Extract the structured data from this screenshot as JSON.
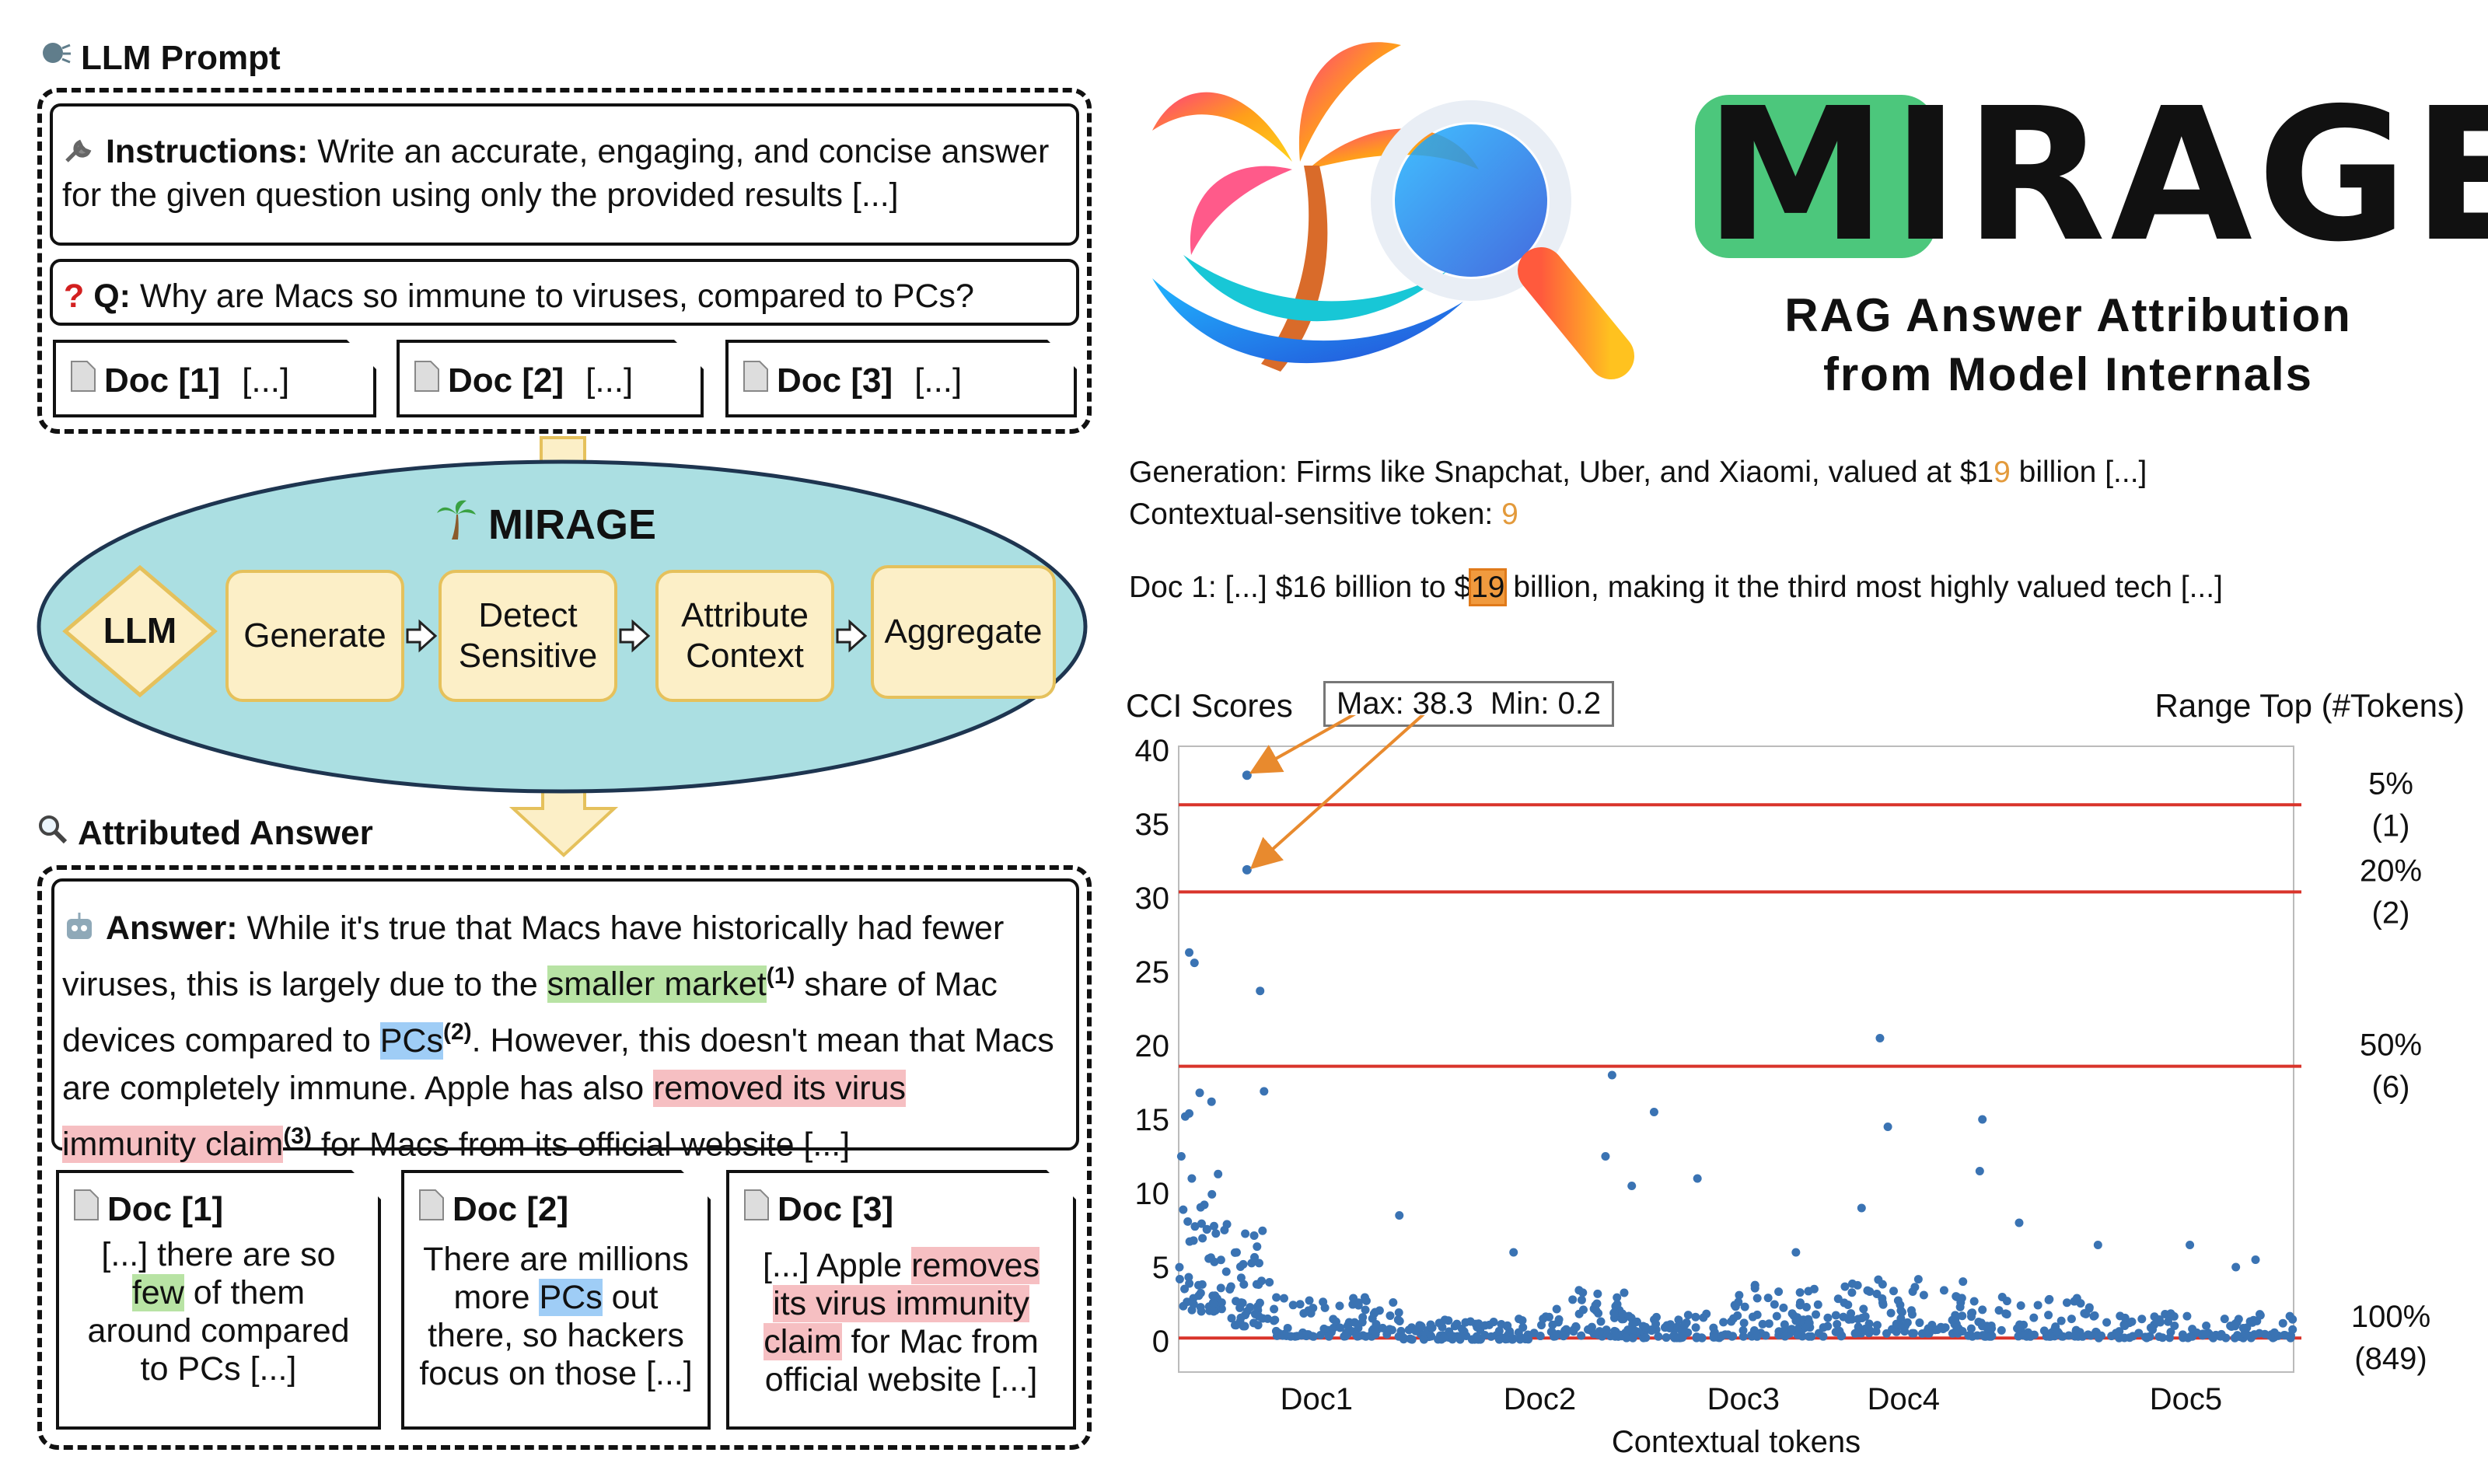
{
  "prompt_section": {
    "title": "LLM Prompt",
    "instructions_label": "Instructions:",
    "instructions_text": " Write an accurate, engaging, and concise answer for the given question using only the provided results [...]",
    "question_label": "Q:",
    "question_text": " Why are Macs so immune to viruses, compared to PCs?",
    "docs": [
      {
        "label": "Doc [1]",
        "content": "[...]"
      },
      {
        "label": "Doc [2]",
        "content": "[...]"
      },
      {
        "label": "Doc [3]",
        "content": "[...]"
      }
    ]
  },
  "pipeline": {
    "title": "MIRAGE",
    "llm": "LLM",
    "steps": [
      "Generate",
      "Detect Sensitive",
      "Attribute Context",
      "Aggregate"
    ]
  },
  "answer_section": {
    "title": "Attributed Answer",
    "answer_label": "Answer:",
    "answer_parts": {
      "p1": " While it's true that Macs have historically had fewer viruses, this is largely due to the ",
      "h1": "smaller market",
      "s1": "(1)",
      "p2": " share of Mac devices compared to ",
      "h2": "PCs",
      "s2": "(2)",
      "p3": ". However, this doesn't mean that Macs are completely immune. Apple has also ",
      "h3a": "removed its virus",
      "h3b": "immunity claim",
      "s3": "(3)",
      "p4": " for Macs from its official website [...]"
    },
    "docs": [
      {
        "label": "Doc [1]",
        "pre": "[...] there are so ",
        "hl": "few",
        "post": " of them around compared to PCs [...]"
      },
      {
        "label": "Doc [2]",
        "pre": "There are millions more ",
        "hl": "PCs",
        "post": " out there, so hackers focus on those [...]"
      },
      {
        "label": "Doc [3]",
        "pre": "[...] Apple ",
        "hl": "removes its virus immunity claim",
        "post": " for Mac from official website [...]"
      }
    ]
  },
  "branding": {
    "title_highlight": "MI",
    "title_rest": "RAGE",
    "subtitle_line1": "RAG Answer Attribution",
    "subtitle_line2": "from Model Internals"
  },
  "example": {
    "generation_prefix": "Generation: Firms like Snapchat, Uber, and Xiaomi, valued at $1",
    "generation_token": "9",
    "generation_suffix": " billion [...]",
    "sensitive_label": "Contextual-sensitive token: ",
    "sensitive_token": "9",
    "doc_prefix": "Doc 1: [...] $16 billion to $",
    "doc_token": "19",
    "doc_suffix": " billion, making it the third most highly valued tech [...]"
  },
  "colors": {
    "accent_green": "#4cc77c",
    "token_orange": "#e39a3b",
    "arrow_orange": "#e88a2e",
    "point_blue": "#3a73b3",
    "threshold_red": "#d9342b",
    "pipeline_fill": "#abdfe2",
    "step_fill": "#fcefc7"
  },
  "icons": {
    "prompt_title": "speaking-head-icon",
    "instructions": "wrench-icon",
    "question": "red-question-icon",
    "doc": "page-icon",
    "pipeline_title": "palm-tree-icon",
    "answer_title": "magnifier-icon",
    "answer": "robot-icon",
    "logo": "palm-magnifier-logo"
  },
  "chart_data": {
    "type": "scatter",
    "title": "CCI Scores",
    "stats_label": "Max: 38.3  Min: 0.2",
    "right_title": "Range Top (#Tokens)",
    "xlabel": "Contextual tokens",
    "ylabel": "",
    "ylim": [
      0,
      40
    ],
    "xlim": [
      0,
      849
    ],
    "yticks": [
      0,
      5,
      10,
      15,
      20,
      25,
      30,
      35,
      40
    ],
    "x_categories": [
      {
        "label": "Doc1",
        "x": 105
      },
      {
        "label": "Doc2",
        "x": 275
      },
      {
        "label": "Doc3",
        "x": 430
      },
      {
        "label": "Doc4",
        "x": 552
      },
      {
        "label": "Doc5",
        "x": 767
      }
    ],
    "thresholds": [
      {
        "y": 36.3,
        "label": "5%",
        "count": "(1)"
      },
      {
        "y": 30.4,
        "label": "20%",
        "count": "(2)"
      },
      {
        "y": 18.6,
        "label": "50%",
        "count": "(6)"
      },
      {
        "y": 0.2,
        "label": "100%",
        "count": "(849)"
      }
    ],
    "highlighted_points": [
      [
        52,
        38.3
      ],
      [
        52,
        31.9
      ]
    ],
    "clusters": [
      {
        "x0": 0,
        "x1": 40,
        "base": 2.0,
        "peak": 10.0,
        "n": 55
      },
      {
        "x0": 40,
        "x1": 70,
        "base": 1.0,
        "peak": 7.5,
        "n": 40
      },
      {
        "x0": 70,
        "x1": 170,
        "base": 0.3,
        "peak": 3.0,
        "n": 90
      },
      {
        "x0": 170,
        "x1": 270,
        "base": 0.1,
        "peak": 1.5,
        "n": 95
      },
      {
        "x0": 270,
        "x1": 340,
        "base": 0.3,
        "peak": 3.5,
        "n": 70
      },
      {
        "x0": 340,
        "x1": 420,
        "base": 0.2,
        "peak": 2.0,
        "n": 75
      },
      {
        "x0": 420,
        "x1": 510,
        "base": 0.3,
        "peak": 4.0,
        "n": 85
      },
      {
        "x0": 510,
        "x1": 600,
        "base": 0.5,
        "peak": 4.5,
        "n": 85
      },
      {
        "x0": 600,
        "x1": 700,
        "base": 0.3,
        "peak": 3.0,
        "n": 90
      },
      {
        "x0": 700,
        "x1": 849,
        "base": 0.2,
        "peak": 2.2,
        "n": 100
      }
    ],
    "outliers": [
      [
        8,
        26.3
      ],
      [
        12,
        25.6
      ],
      [
        62,
        23.7
      ],
      [
        25,
        16.2
      ],
      [
        16,
        16.8
      ],
      [
        5,
        15.2
      ],
      [
        8,
        15.4
      ],
      [
        2,
        12.5
      ],
      [
        10,
        11.0
      ],
      [
        30,
        11.3
      ],
      [
        65,
        16.9
      ],
      [
        330,
        18.0
      ],
      [
        362,
        15.5
      ],
      [
        534,
        20.5
      ],
      [
        540,
        14.5
      ],
      [
        612,
        15.0
      ],
      [
        395,
        11.0
      ],
      [
        610,
        11.5
      ],
      [
        325,
        12.5
      ],
      [
        168,
        8.5
      ],
      [
        345,
        10.5
      ],
      [
        640,
        8.0
      ],
      [
        255,
        6.0
      ],
      [
        470,
        6.0
      ],
      [
        520,
        9.0
      ],
      [
        700,
        6.5
      ],
      [
        770,
        6.5
      ],
      [
        805,
        5.0
      ],
      [
        820,
        5.5
      ]
    ]
  }
}
